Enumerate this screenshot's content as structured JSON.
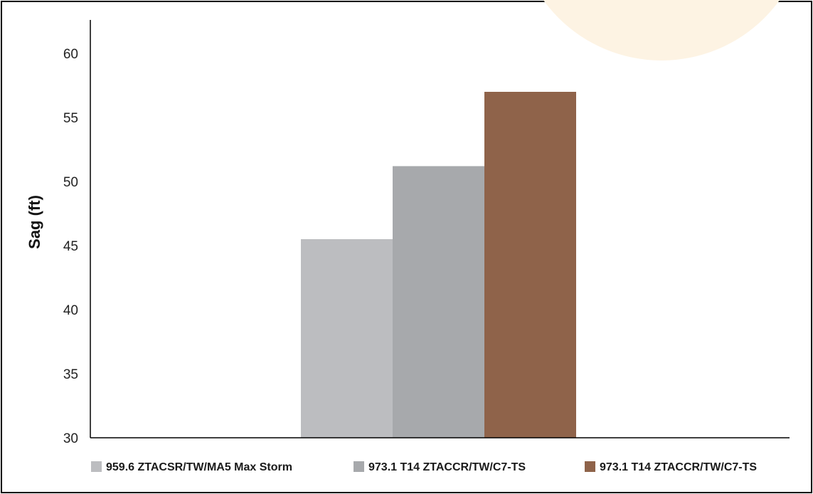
{
  "chart_data": {
    "type": "bar",
    "ylabel": "Sag (ft)",
    "xlabel": "",
    "ylim": [
      30,
      62.5
    ],
    "yticks": [
      30,
      35,
      40,
      45,
      50,
      55,
      60
    ],
    "grid": false,
    "legend_position": "bottom",
    "series": [
      {
        "name": "959.6 ZTACSR/TW/MA5 Max Storm",
        "values": [
          45.5
        ],
        "color": "#bcbdc0"
      },
      {
        "name": "973.1 T14 ZTACCR/TW/C7-TS",
        "values": [
          51.2
        ],
        "color": "#a7a9ac"
      },
      {
        "name": "973.1 T14 ZTACCR/TW/C7-TS",
        "values": [
          57.0
        ],
        "color": "#8f634a"
      }
    ]
  },
  "colors": {
    "axis": "#000000",
    "watermark": "#fdf3e3"
  }
}
